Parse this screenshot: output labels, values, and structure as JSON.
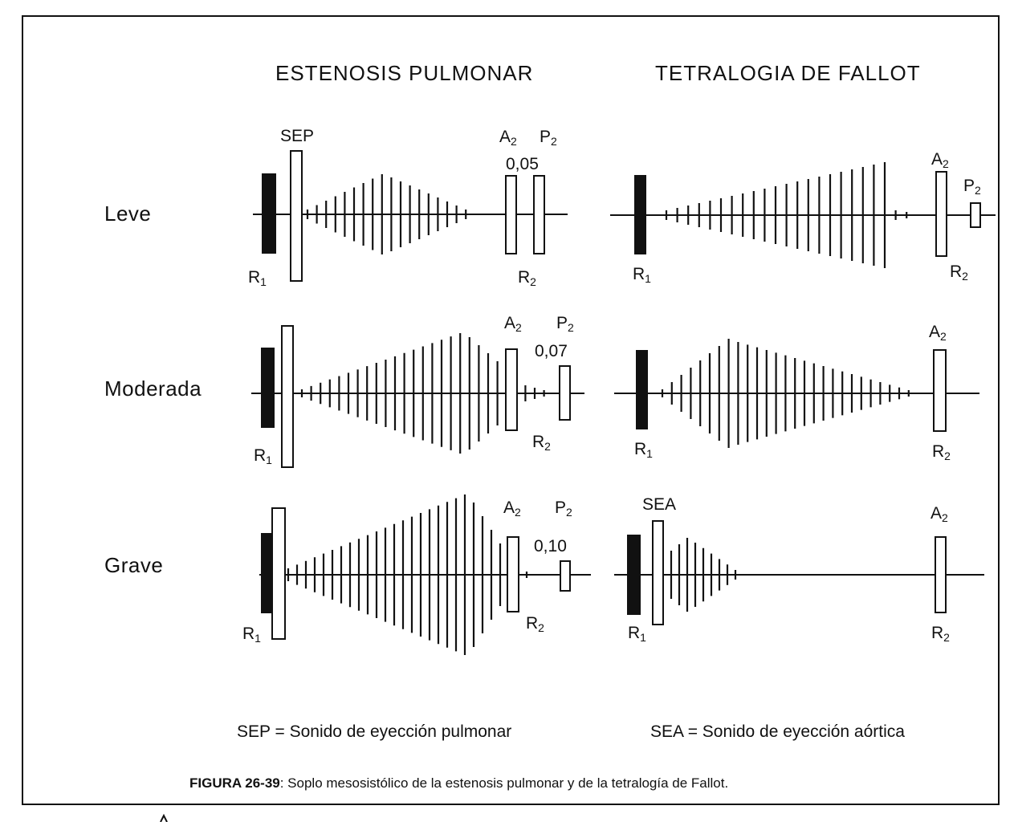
{
  "columns": {
    "left_title": "ESTENOSIS PULMONAR",
    "right_title": "TETRALOGIA DE FALLOT"
  },
  "rows": {
    "leve": "Leve",
    "moderada": "Moderada",
    "grave": "Grave"
  },
  "sound_labels": {
    "R": "R",
    "R_sub_1": "1",
    "R_sub_2": "2",
    "A": "A",
    "P": "P",
    "sub_2": "2",
    "SEP": "SEP",
    "SEA": "SEA"
  },
  "intervals": {
    "leve": "0,05",
    "moderada": "0,07",
    "grave": "0,10"
  },
  "legend": {
    "sep": "SEP = Sonido de eyección pulmonar",
    "sea": "SEA = Sonido de eyección aórtica"
  },
  "caption": {
    "label": "FIGURA 26-39",
    "text": ": Soplo mesosistólico de la estenosis pulmonar y de la tetralogía de Fallot."
  }
}
